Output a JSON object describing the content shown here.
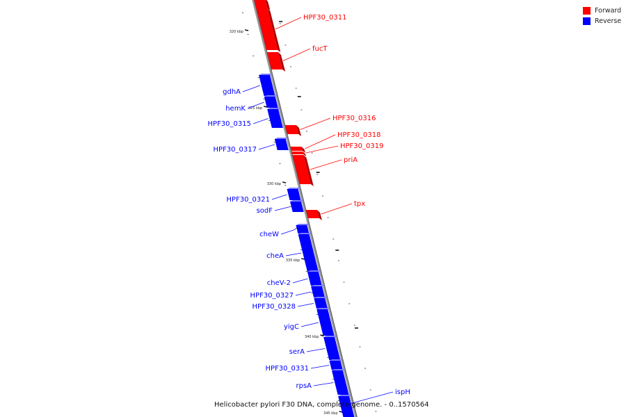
{
  "caption": "Helicobacter pylori F30 DNA, complete genome. - 0..1570564",
  "legend": [
    {
      "label": "Forward",
      "color": "#ff0000"
    },
    {
      "label": "Reverse",
      "color": "#0000ff"
    }
  ],
  "colors": {
    "forward": "#ff0000",
    "reverse": "#0000ff",
    "backbone": "#9a9a9a"
  },
  "tick_labels": [
    "320 kbp",
    "325 kbp",
    "330 kbp",
    "335 kbp",
    "340 kbp",
    "345 kbp"
  ],
  "genes": [
    {
      "name": "HPF30_0311",
      "strand": "forward"
    },
    {
      "name": "fucT",
      "strand": "forward"
    },
    {
      "name": "gdhA",
      "strand": "reverse"
    },
    {
      "name": "hemK",
      "strand": "reverse"
    },
    {
      "name": "HPF30_0315",
      "strand": "reverse"
    },
    {
      "name": "HPF30_0316",
      "strand": "forward"
    },
    {
      "name": "HPF30_0318",
      "strand": "forward"
    },
    {
      "name": "HPF30_0319",
      "strand": "forward"
    },
    {
      "name": "HPF30_0317",
      "strand": "reverse"
    },
    {
      "name": "priA",
      "strand": "forward"
    },
    {
      "name": "HPF30_0321",
      "strand": "reverse"
    },
    {
      "name": "sodF",
      "strand": "reverse"
    },
    {
      "name": "tpx",
      "strand": "forward"
    },
    {
      "name": "cheW",
      "strand": "reverse"
    },
    {
      "name": "cheA",
      "strand": "reverse"
    },
    {
      "name": "cheV-2",
      "strand": "reverse"
    },
    {
      "name": "HPF30_0327",
      "strand": "reverse"
    },
    {
      "name": "HPF30_0328",
      "strand": "reverse"
    },
    {
      "name": "yigC",
      "strand": "reverse"
    },
    {
      "name": "serA",
      "strand": "reverse"
    },
    {
      "name": "HPF30_0331",
      "strand": "reverse"
    },
    {
      "name": "rpsA",
      "strand": "reverse"
    },
    {
      "name": "ispH",
      "strand": "reverse"
    }
  ]
}
